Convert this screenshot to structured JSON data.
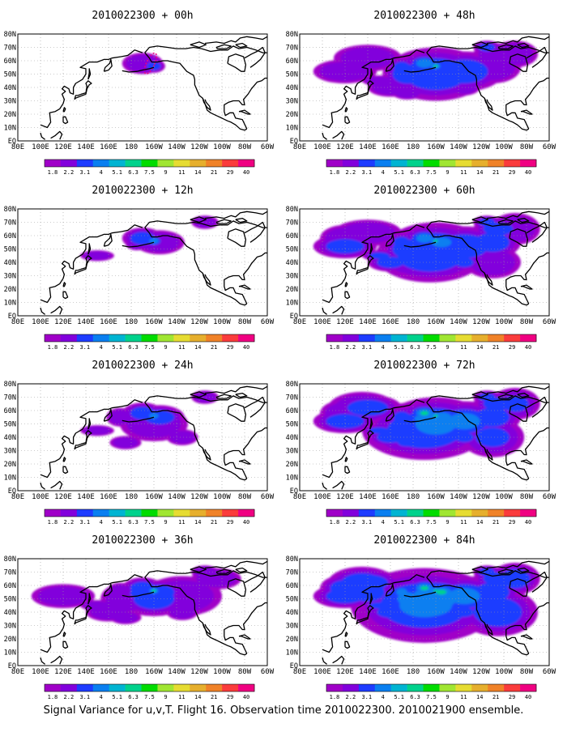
{
  "figure": {
    "footer": "Signal Variance for u,v,T. Flight 16. Observation time 2010022300. 2010021900 ensemble."
  },
  "colorbar": {
    "labels": [
      "1.8",
      "2.2",
      "3.1",
      "4",
      "5.1",
      "6.3",
      "7.5",
      "9",
      "11",
      "14",
      "21",
      "29",
      "40"
    ],
    "colors": [
      "#a000c8",
      "#8200dc",
      "#1e3cff",
      "#0a7ff0",
      "#00b4d2",
      "#00d28c",
      "#00dc00",
      "#a0e632",
      "#e6dc32",
      "#e6af2d",
      "#f08228",
      "#fa3c3c",
      "#f00082"
    ]
  },
  "axes": {
    "x_ticks": [
      "80E",
      "100E",
      "120E",
      "140E",
      "160E",
      "180",
      "160W",
      "140W",
      "120W",
      "100W",
      "80W",
      "60W"
    ],
    "y_ticks": [
      "EQ",
      "10N",
      "20N",
      "30N",
      "40N",
      "50N",
      "60N",
      "70N",
      "80N"
    ]
  },
  "panels": [
    {
      "title": "2010022300 + 00h",
      "level": 0
    },
    {
      "title": "2010022300 + 48h",
      "level": 4
    },
    {
      "title": "2010022300 + 12h",
      "level": 1
    },
    {
      "title": "2010022300 + 60h",
      "level": 5
    },
    {
      "title": "2010022300 + 24h",
      "level": 2
    },
    {
      "title": "2010022300 + 72h",
      "level": 6
    },
    {
      "title": "2010022300 + 36h",
      "level": 3
    },
    {
      "title": "2010022300 + 84h",
      "level": 7
    }
  ]
}
